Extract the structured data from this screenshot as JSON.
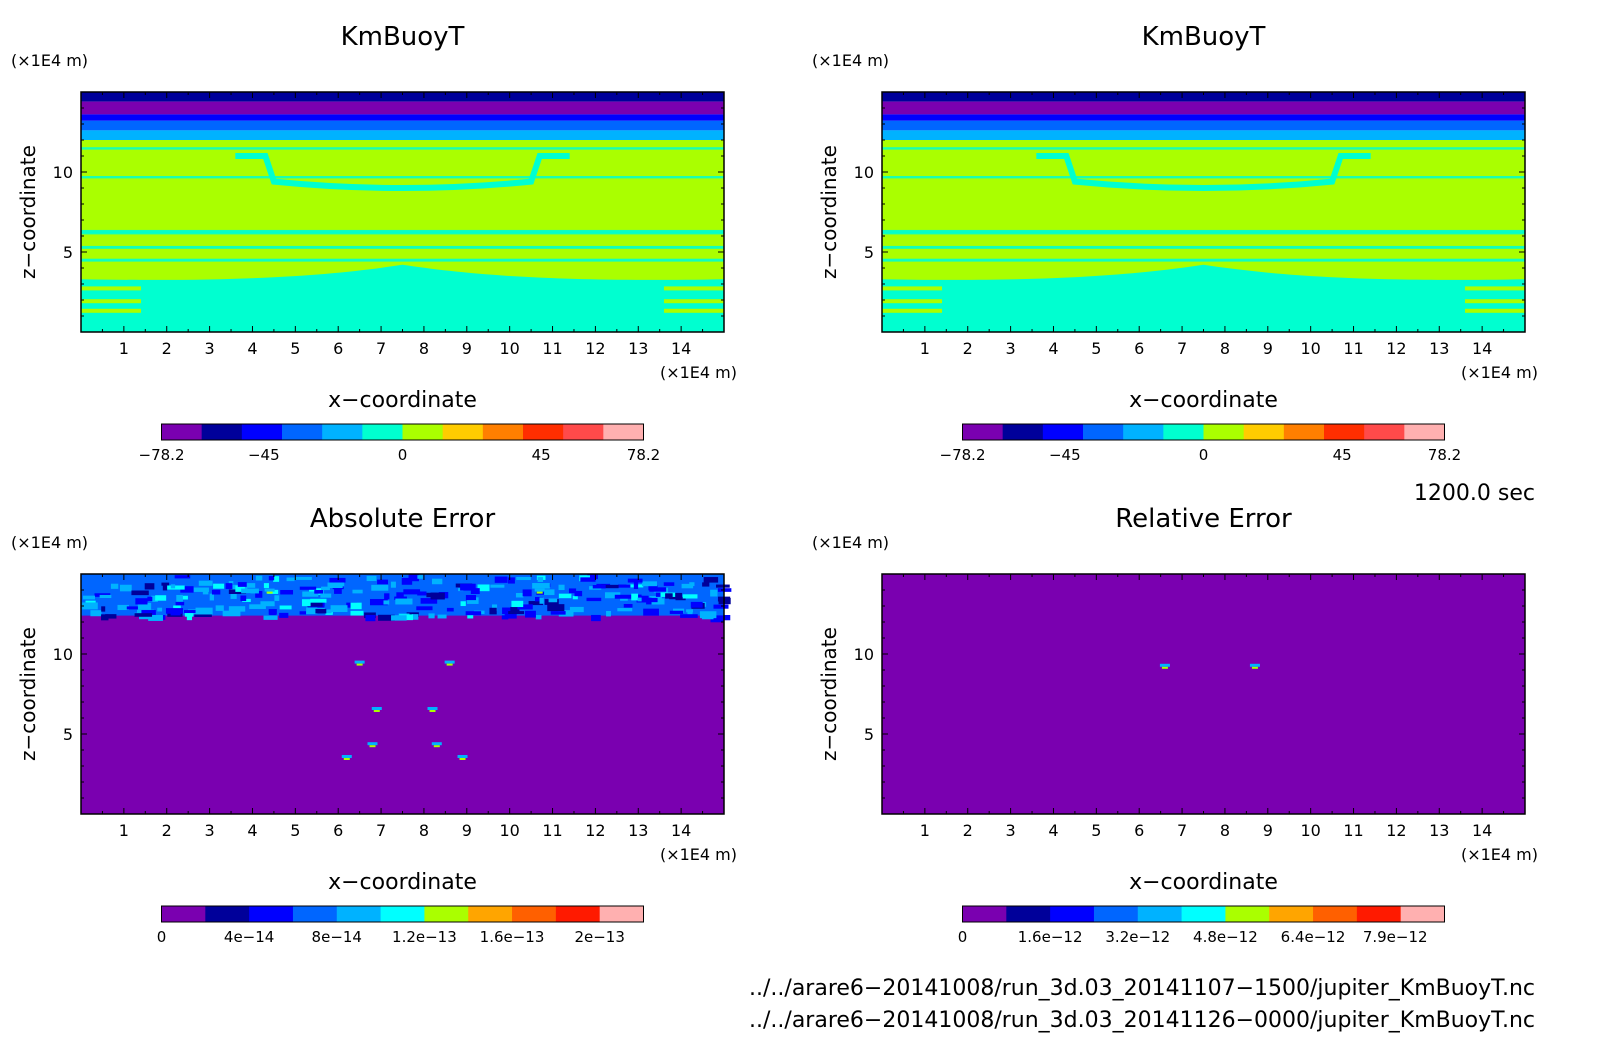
{
  "chart_data": [
    {
      "type": "heatmap",
      "title": "KmBuoyT",
      "xlabel": "x−coordinate",
      "ylabel": "z−coordinate",
      "x_unit": "(×1E4 m)",
      "y_unit": "(×1E4 m)",
      "x_ticks": [
        "1",
        "2",
        "3",
        "4",
        "5",
        "6",
        "7",
        "8",
        "9",
        "10",
        "11",
        "12",
        "13",
        "14"
      ],
      "y_ticks": [
        "5",
        "10"
      ],
      "xlim": [
        0,
        15
      ],
      "ylim": [
        0,
        15
      ],
      "colorbar": {
        "colors": [
          "#7a00b0",
          "#00009a",
          "#0000ff",
          "#0066ff",
          "#00b2ff",
          "#00ffd0",
          "#aaff00",
          "#ffcc00",
          "#ff7f00",
          "#ff2e00",
          "#ff4a4a",
          "#ffb0b0"
        ],
        "tick_labels": [
          "−78.2",
          "−45",
          "0",
          "45",
          "78.2"
        ],
        "tick_values": [
          -78.2,
          -45,
          0,
          45,
          78.2
        ],
        "range": [
          -78.2,
          78.2
        ]
      },
      "field": {
        "bands": [
          {
            "z": [
              14.4,
              15.0
            ],
            "color_index": 1
          },
          {
            "z": [
              13.6,
              14.4
            ],
            "color_index": 0
          },
          {
            "z": [
              13.2,
              13.6
            ],
            "color_index": 2
          },
          {
            "z": [
              12.6,
              13.2
            ],
            "color_index": 3
          },
          {
            "z": [
              12.0,
              12.6
            ],
            "color_index": 4
          },
          {
            "z": [
              0.0,
              12.0
            ],
            "color_index": 6
          }
        ],
        "low_region_top_z": 3.3,
        "low_region_color_index": 5
      }
    },
    {
      "type": "heatmap",
      "title": "KmBuoyT",
      "xlabel": "x−coordinate",
      "ylabel": "z−coordinate",
      "x_unit": "(×1E4 m)",
      "y_unit": "(×1E4 m)",
      "x_ticks": [
        "1",
        "2",
        "3",
        "4",
        "5",
        "6",
        "7",
        "8",
        "9",
        "10",
        "11",
        "12",
        "13",
        "14"
      ],
      "y_ticks": [
        "5",
        "10"
      ],
      "xlim": [
        0,
        15
      ],
      "ylim": [
        0,
        15
      ],
      "colorbar": {
        "colors": [
          "#7a00b0",
          "#00009a",
          "#0000ff",
          "#0066ff",
          "#00b2ff",
          "#00ffd0",
          "#aaff00",
          "#ffcc00",
          "#ff7f00",
          "#ff2e00",
          "#ff4a4a",
          "#ffb0b0"
        ],
        "tick_labels": [
          "−78.2",
          "−45",
          "0",
          "45",
          "78.2"
        ],
        "tick_values": [
          -78.2,
          -45,
          0,
          45,
          78.2
        ],
        "range": [
          -78.2,
          78.2
        ]
      },
      "field": {
        "bands": [
          {
            "z": [
              14.4,
              15.0
            ],
            "color_index": 1
          },
          {
            "z": [
              13.6,
              14.4
            ],
            "color_index": 0
          },
          {
            "z": [
              13.2,
              13.6
            ],
            "color_index": 2
          },
          {
            "z": [
              12.6,
              13.2
            ],
            "color_index": 3
          },
          {
            "z": [
              12.0,
              12.6
            ],
            "color_index": 4
          },
          {
            "z": [
              0.0,
              12.0
            ],
            "color_index": 6
          }
        ],
        "low_region_top_z": 3.3,
        "low_region_color_index": 5
      }
    },
    {
      "type": "heatmap",
      "title": "Absolute Error",
      "xlabel": "x−coordinate",
      "ylabel": "z−coordinate",
      "x_unit": "(×1E4 m)",
      "y_unit": "(×1E4 m)",
      "x_ticks": [
        "1",
        "2",
        "3",
        "4",
        "5",
        "6",
        "7",
        "8",
        "9",
        "10",
        "11",
        "12",
        "13",
        "14"
      ],
      "y_ticks": [
        "5",
        "10"
      ],
      "xlim": [
        0,
        15
      ],
      "ylim": [
        0,
        15
      ],
      "colorbar": {
        "colors": [
          "#7a00b0",
          "#00009a",
          "#0000ff",
          "#0066ff",
          "#00b2ff",
          "#00ffff",
          "#aaff00",
          "#ffa500",
          "#ff6000",
          "#ff1a00",
          "#ffb0b0"
        ],
        "tick_labels": [
          "0",
          "4e−14",
          "8e−14",
          "1.2e−13",
          "1.6e−13",
          "2e−13"
        ],
        "tick_values": [
          0,
          4e-14,
          8e-14,
          1.2e-13,
          1.6e-13,
          2e-13
        ],
        "range": [
          0,
          2.2e-13
        ]
      },
      "field": {
        "background_color_index": 0,
        "top_noise_band_z": [
          12.4,
          15.0
        ],
        "hotspots": [
          {
            "x": 6.5,
            "z": 9.4
          },
          {
            "x": 8.6,
            "z": 9.4
          },
          {
            "x": 6.9,
            "z": 6.5
          },
          {
            "x": 8.2,
            "z": 6.5
          },
          {
            "x": 6.8,
            "z": 4.3
          },
          {
            "x": 8.3,
            "z": 4.3
          },
          {
            "x": 6.2,
            "z": 3.5
          },
          {
            "x": 8.9,
            "z": 3.5
          },
          {
            "x": 4.4,
            "z": 13.9
          },
          {
            "x": 10.7,
            "z": 13.9
          }
        ]
      }
    },
    {
      "type": "heatmap",
      "title": "Relative Error",
      "xlabel": "x−coordinate",
      "ylabel": "z−coordinate",
      "x_unit": "(×1E4 m)",
      "y_unit": "(×1E4 m)",
      "x_ticks": [
        "1",
        "2",
        "3",
        "4",
        "5",
        "6",
        "7",
        "8",
        "9",
        "10",
        "11",
        "12",
        "13",
        "14"
      ],
      "y_ticks": [
        "5",
        "10"
      ],
      "xlim": [
        0,
        15
      ],
      "ylim": [
        0,
        15
      ],
      "colorbar": {
        "colors": [
          "#7a00b0",
          "#00009a",
          "#0000ff",
          "#0066ff",
          "#00b2ff",
          "#00ffff",
          "#aaff00",
          "#ffa500",
          "#ff6000",
          "#ff1a00",
          "#ffb0b0"
        ],
        "tick_labels": [
          "0",
          "1.6e−12",
          "3.2e−12",
          "4.8e−12",
          "6.4e−12",
          "7.9e−12"
        ],
        "tick_values": [
          0,
          1.6e-12,
          3.2e-12,
          4.8e-12,
          6.4e-12,
          7.9e-12
        ],
        "range": [
          0,
          8.8e-12
        ]
      },
      "field": {
        "background_color_index": 0,
        "hotspots": [
          {
            "x": 6.6,
            "z": 9.2
          },
          {
            "x": 8.7,
            "z": 9.2
          }
        ]
      }
    }
  ],
  "time_label": "1200.0 sec",
  "file_paths": [
    "../../arare6−20141008/run_3d.03_20141107−1500/jupiter_KmBuoyT.nc",
    "../../arare6−20141008/run_3d.03_20141126−0000/jupiter_KmBuoyT.nc"
  ]
}
